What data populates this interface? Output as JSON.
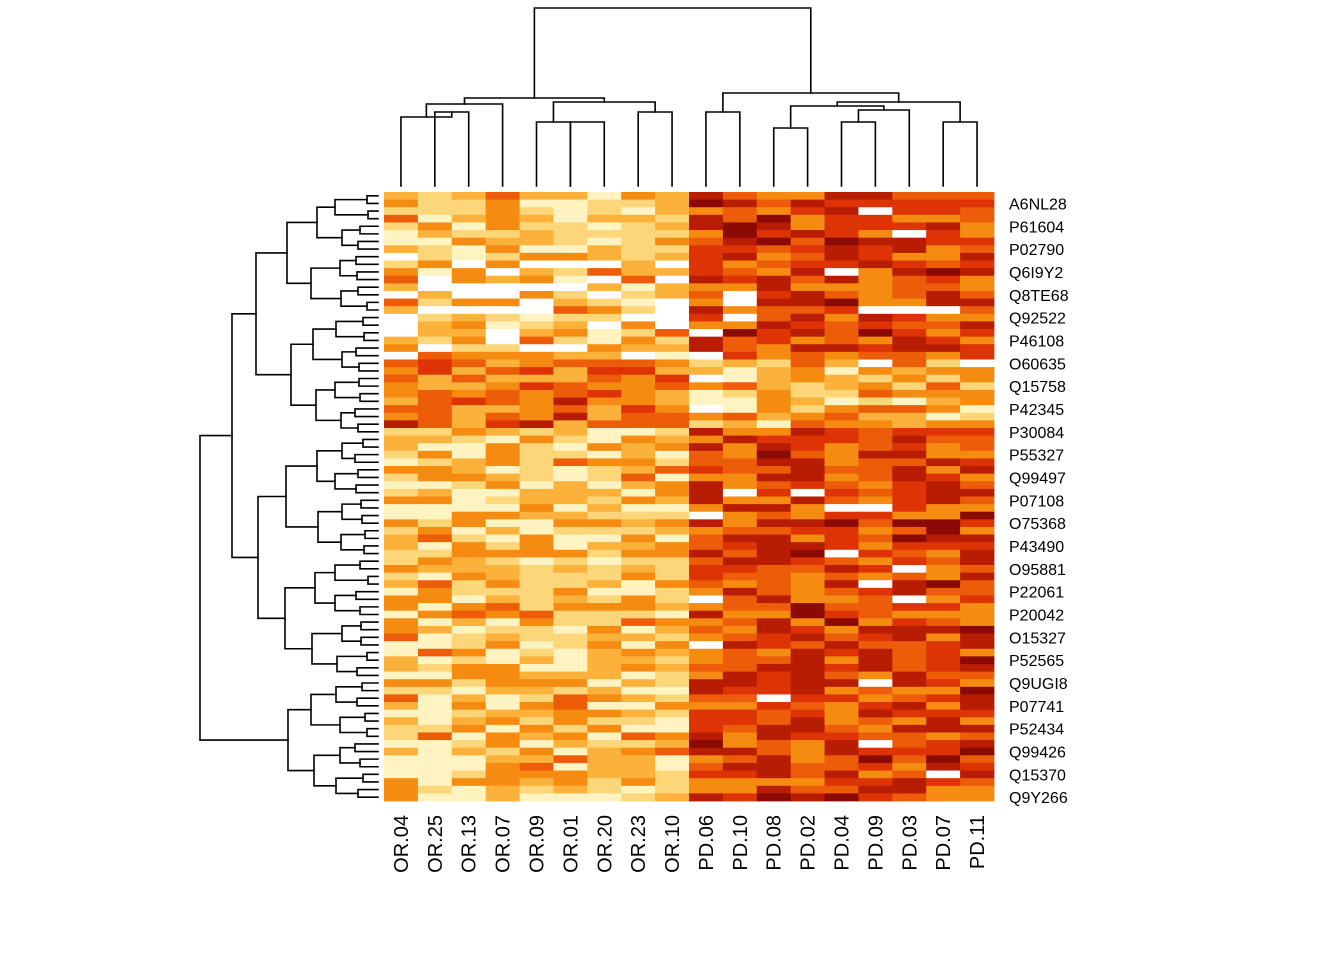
{
  "chart_data": {
    "type": "heatmap",
    "title": "",
    "xlabel": "",
    "ylabel": "",
    "columns": [
      "OR.04",
      "OR.25",
      "OR.13",
      "OR.07",
      "OR.09",
      "OR.01",
      "OR.20",
      "OR.23",
      "OR.10",
      "PD.06",
      "PD.10",
      "PD.08",
      "PD.02",
      "PD.04",
      "PD.09",
      "PD.03",
      "PD.07",
      "PD.11"
    ],
    "column_groups": {
      "OR": 9,
      "PD": 9
    },
    "n_rows": 80,
    "row_labels_shown": [
      "A6NL28",
      "P61604",
      "P02790",
      "Q6I9Y2",
      "Q8TE68",
      "Q92522",
      "P46108",
      "O60635",
      "Q15758",
      "P42345",
      "P30084",
      "P55327",
      "Q99497",
      "P07108",
      "O75368",
      "P43490",
      "O95881",
      "P22061",
      "P20042",
      "O15327",
      "P52565",
      "Q9UGI8",
      "P07741",
      "P52434",
      "Q99426",
      "Q15370",
      "Q9Y266"
    ],
    "color_scale": [
      "#ffffff",
      "#fff3c2",
      "#fdd67a",
      "#fbb13a",
      "#f58b10",
      "#ec5c09",
      "#dd3305",
      "#b81c03",
      "#8c0a04",
      "#5c0008"
    ],
    "column_dendrogram": true,
    "row_dendrogram": true,
    "legend": "none"
  }
}
